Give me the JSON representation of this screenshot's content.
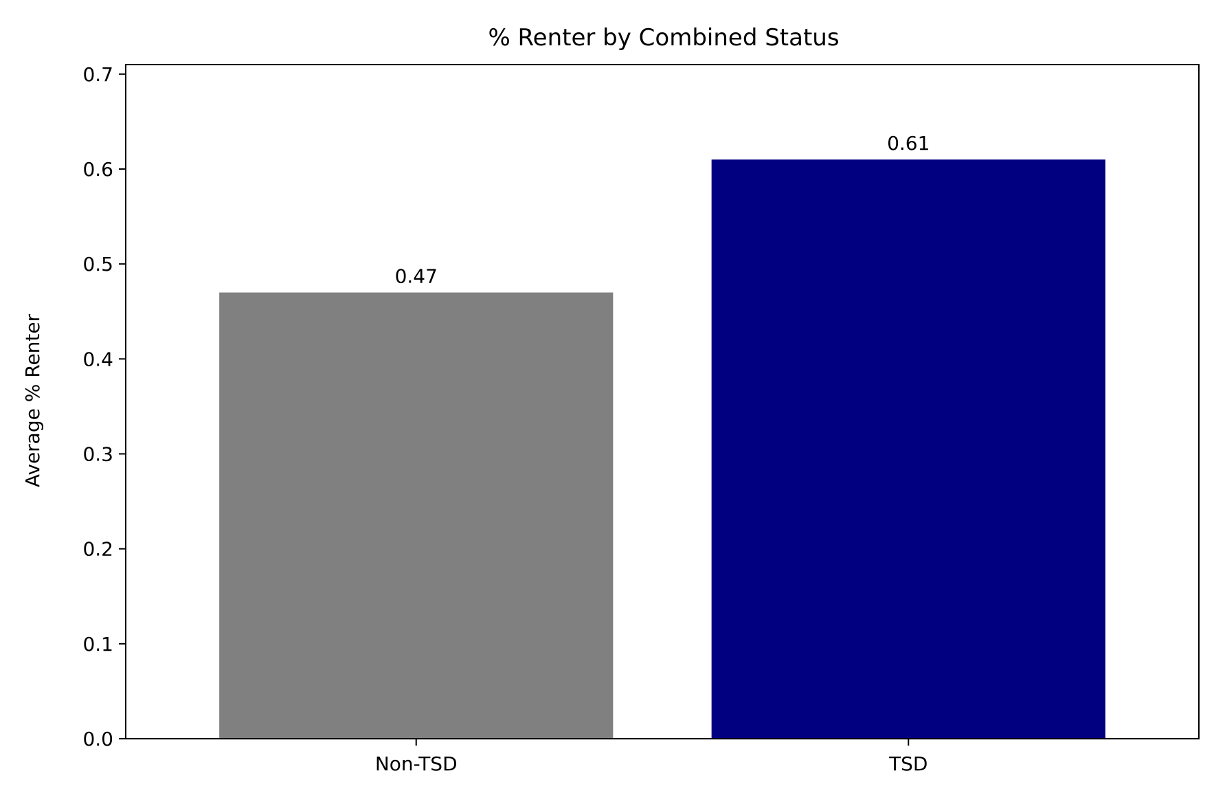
{
  "chart_data": {
    "type": "bar",
    "title": "% Renter by Combined Status",
    "xlabel": "",
    "ylabel": "Average % Renter",
    "categories": [
      "Non-TSD",
      "TSD"
    ],
    "values": [
      0.47,
      0.61
    ],
    "value_labels": [
      "0.47",
      "0.61"
    ],
    "colors": [
      "#808080",
      "#000080"
    ],
    "ylim": [
      0,
      0.71
    ],
    "yticks": [
      0.0,
      0.1,
      0.2,
      0.3,
      0.4,
      0.5,
      0.6,
      0.7
    ],
    "ytick_labels": [
      "0.0",
      "0.1",
      "0.2",
      "0.3",
      "0.4",
      "0.5",
      "0.6",
      "0.7"
    ],
    "grid": false,
    "legend": false
  }
}
